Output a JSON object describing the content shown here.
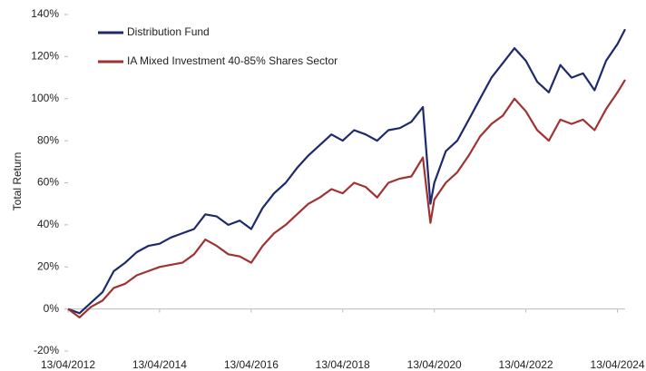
{
  "chart_data": {
    "type": "line",
    "y_label": "Total Return",
    "x": [
      "13/04/2012",
      "13/07/2012",
      "13/10/2012",
      "13/01/2013",
      "13/04/2013",
      "13/07/2013",
      "13/10/2013",
      "13/01/2014",
      "13/04/2014",
      "13/07/2014",
      "13/10/2014",
      "13/01/2015",
      "13/04/2015",
      "13/07/2015",
      "13/10/2015",
      "13/01/2016",
      "13/04/2016",
      "13/07/2016",
      "13/10/2016",
      "13/01/2017",
      "13/04/2017",
      "13/07/2017",
      "13/10/2017",
      "13/01/2018",
      "13/04/2018",
      "13/07/2018",
      "13/10/2018",
      "13/01/2019",
      "13/04/2019",
      "13/07/2019",
      "13/10/2019",
      "13/01/2020",
      "13/03/2020",
      "13/04/2020",
      "13/07/2020",
      "13/10/2020",
      "13/01/2021",
      "13/04/2021",
      "13/07/2021",
      "13/10/2021",
      "13/01/2022",
      "13/04/2022",
      "13/07/2022",
      "13/10/2022",
      "13/01/2023",
      "13/04/2023",
      "13/07/2023",
      "13/10/2023",
      "13/01/2024",
      "13/04/2024",
      "13/06/2024"
    ],
    "series": [
      {
        "name": "Distribution Fund",
        "color": "#1f2a6b",
        "values": [
          0,
          -2,
          3,
          8,
          18,
          22,
          27,
          30,
          31,
          34,
          36,
          38,
          45,
          44,
          40,
          42,
          38,
          48,
          55,
          60,
          67,
          73,
          78,
          83,
          80,
          85,
          83,
          80,
          85,
          86,
          89,
          96,
          50,
          60,
          75,
          80,
          90,
          100,
          110,
          117,
          124,
          118,
          108,
          103,
          116,
          110,
          112,
          104,
          118,
          126,
          133
        ]
      },
      {
        "name": "IA Mixed Investment 40-85% Shares Sector",
        "color": "#a03232",
        "values": [
          0,
          -4,
          1,
          4,
          10,
          12,
          16,
          18,
          20,
          21,
          22,
          26,
          33,
          30,
          26,
          25,
          22,
          30,
          36,
          40,
          45,
          50,
          53,
          57,
          55,
          60,
          58,
          53,
          60,
          62,
          63,
          72,
          41,
          52,
          60,
          65,
          73,
          82,
          88,
          92,
          100,
          94,
          85,
          80,
          90,
          88,
          90,
          85,
          95,
          103,
          109
        ]
      }
    ],
    "xlim": [
      "13/04/2012",
      "13/06/2024"
    ],
    "xticks": [
      "13/04/2012",
      "13/04/2014",
      "13/04/2016",
      "13/04/2018",
      "13/04/2020",
      "13/04/2022",
      "13/04/2024"
    ],
    "ylim": [
      -20,
      140
    ],
    "yticks": [
      {
        "value": -20,
        "label": "-20%"
      },
      {
        "value": 0,
        "label": "0%"
      },
      {
        "value": 20,
        "label": "20%"
      },
      {
        "value": 40,
        "label": "40%"
      },
      {
        "value": 60,
        "label": "60%"
      },
      {
        "value": 80,
        "label": "80%"
      },
      {
        "value": 100,
        "label": "100%"
      },
      {
        "value": 120,
        "label": "120%"
      },
      {
        "value": 140,
        "label": "140%"
      }
    ],
    "legend": "top-left"
  }
}
